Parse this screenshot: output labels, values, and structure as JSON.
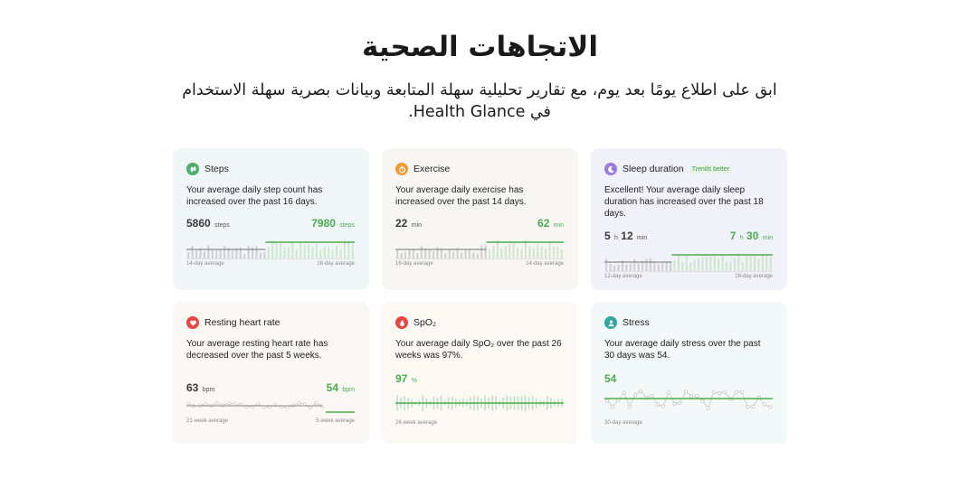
{
  "header": {
    "title": "الاتجاهات الصحية",
    "subtitle_part1": "ابق على اطلاع يومًا بعد يوم، مع تقارير تحليلية سهلة المتابعة وبيانات بصرية سهلة الاستخدام في",
    "subtitle_brand": "Health Glance",
    "subtitle_end": "."
  },
  "colors": {
    "accent_green": "#4aae4f",
    "baseline_gray": "#8c8c8c"
  },
  "cards": [
    {
      "key": "steps",
      "icon": "footprint-icon",
      "title": "Steps",
      "badge": "",
      "desc": "Your average daily step count has increased over the past 16 days.",
      "left_value": "5860",
      "left_unit": "steps",
      "right_value": "7980",
      "right_unit": "steps",
      "left_label": "14-day average",
      "right_label": "16-day average"
    },
    {
      "key": "exercise",
      "icon": "stopwatch-icon",
      "title": "Exercise",
      "badge": "",
      "desc": "Your average daily exercise has increased over the past 14 days.",
      "left_value": "22",
      "left_unit": "min",
      "right_value": "62",
      "right_unit": "min",
      "left_label": "16-day average",
      "right_label": "14-day average"
    },
    {
      "key": "sleep",
      "icon": "moon-icon",
      "title": "Sleep duration",
      "badge": "Trends better",
      "desc": "Excellent!  Your average daily sleep duration has increased over the past 18 days.",
      "left_h": "5",
      "left_m": "12",
      "right_h": "7",
      "right_m": "30",
      "h_unit": "h",
      "m_unit": "min",
      "left_label": "12-day average",
      "right_label": "18-day average"
    },
    {
      "key": "heart",
      "icon": "heart-icon",
      "title": "Resting heart rate",
      "badge": "",
      "desc": "Your average resting heart rate has decreased over the past 5 weeks.",
      "left_value": "63",
      "left_unit": "bpm",
      "right_value": "54",
      "right_unit": "bpm",
      "left_label": "21-week average",
      "right_label": "5-week average"
    },
    {
      "key": "spo2",
      "icon": "blood-drop-icon",
      "title": "SpO₂",
      "badge": "",
      "desc": "Your average daily SpO₂ over the past 26 weeks was 97%.",
      "value": "97",
      "unit": "%",
      "label": "26-week average"
    },
    {
      "key": "stress",
      "icon": "face-icon",
      "title": "Stress",
      "badge": "",
      "desc": "Your average daily stress over the past 30 days was 54.",
      "value": "54",
      "unit": "",
      "label": "30-day average"
    }
  ]
}
